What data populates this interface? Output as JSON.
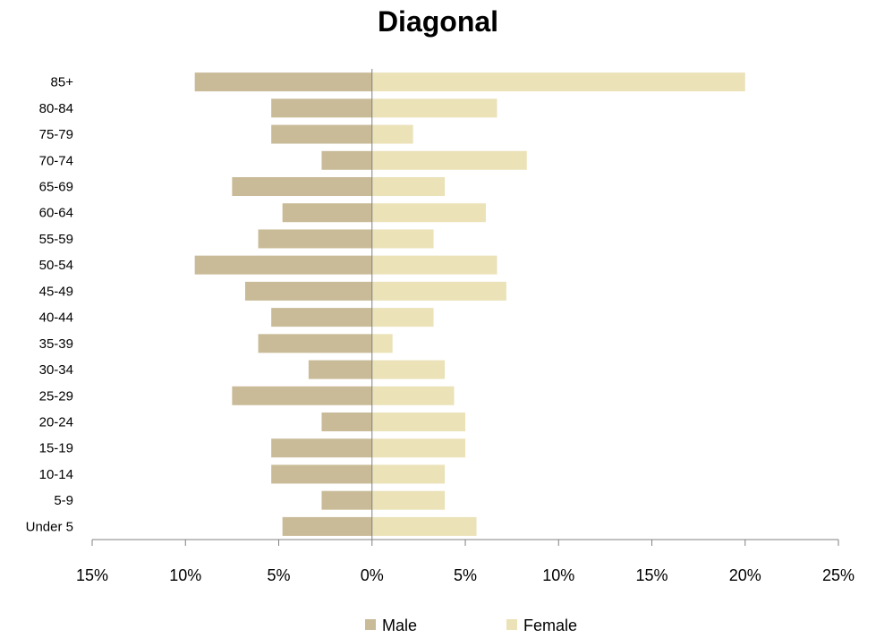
{
  "chart_data": {
    "type": "bar",
    "orientation": "horizontal",
    "title": "Diagonal",
    "categories": [
      "Under 5",
      "5-9",
      "10-14",
      "15-19",
      "20-24",
      "25-29",
      "30-34",
      "35-39",
      "40-44",
      "45-49",
      "50-54",
      "55-59",
      "60-64",
      "65-69",
      "70-74",
      "75-79",
      "80-84",
      "85+"
    ],
    "series": [
      {
        "name": "Male",
        "color": "#c9bb98",
        "values": [
          -4.8,
          -2.7,
          -5.4,
          -5.4,
          -2.7,
          -7.5,
          -3.4,
          -6.1,
          -5.4,
          -6.8,
          -9.5,
          -6.1,
          -4.8,
          -7.5,
          -2.7,
          -5.4,
          -5.4,
          -9.5
        ]
      },
      {
        "name": "Female",
        "color": "#ebe2b8",
        "values": [
          5.6,
          3.9,
          3.9,
          5.0,
          5.0,
          4.4,
          3.9,
          1.1,
          3.3,
          7.2,
          6.7,
          3.3,
          6.1,
          3.9,
          8.3,
          2.2,
          6.7,
          20.0
        ]
      }
    ],
    "x_ticks": [
      "15%",
      "10%",
      "5%",
      "0%",
      "5%",
      "10%",
      "15%",
      "20%",
      "25%"
    ],
    "xlim": [
      -15,
      25
    ],
    "legend_position": "bottom",
    "grid": false
  }
}
